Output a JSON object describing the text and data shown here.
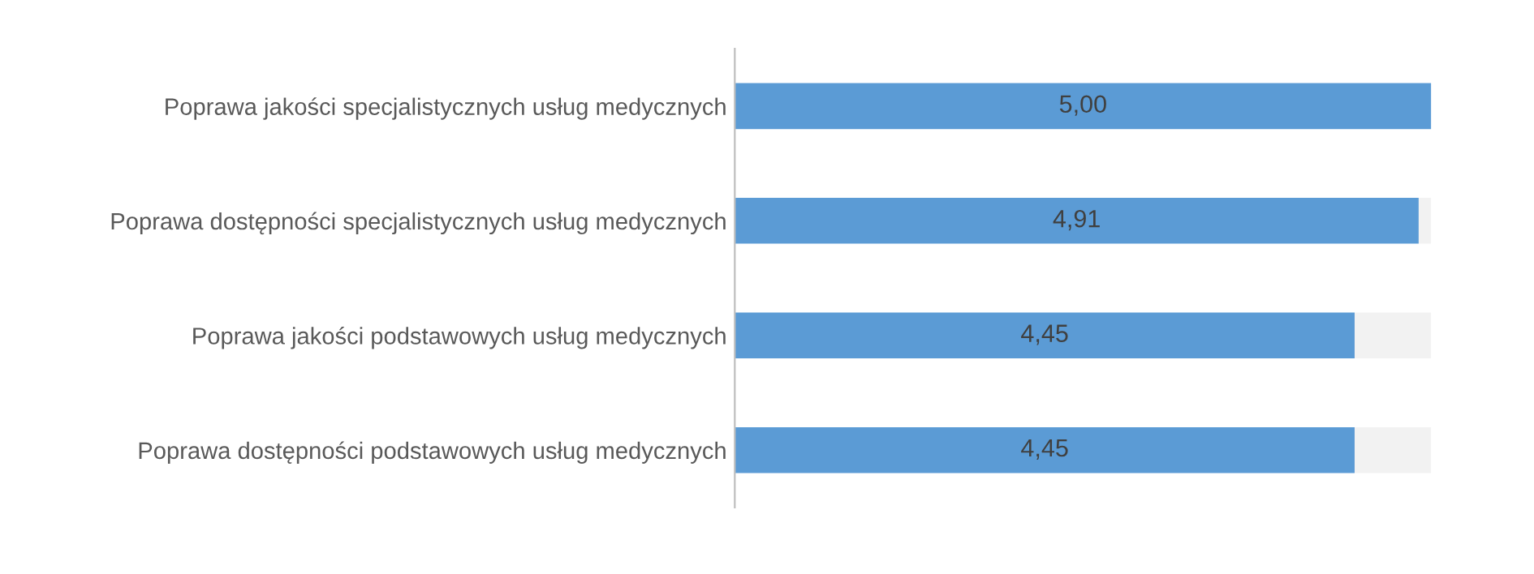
{
  "chart_data": {
    "type": "bar",
    "orientation": "horizontal",
    "stacked": true,
    "categories": [
      "Poprawa jakości specjalistycznych usług medycznych",
      "Poprawa dostępności specjalistycznych usług medycznych",
      "Poprawa jakości podstawowych usług medycznych",
      "Poprawa dostępności podstawowych usług medycznych"
    ],
    "series": [
      {
        "color": "#5b9bd5",
        "values": [
          5.0,
          4.91,
          4.45,
          4.45
        ],
        "value_labels": [
          "5,00",
          "4,91",
          "4,45",
          "4,45"
        ]
      },
      {
        "color": "#f2f2f2",
        "values": [
          0,
          0.09,
          0.55,
          0.55
        ]
      }
    ],
    "xlim": [
      0,
      5
    ],
    "tick_labels": "y",
    "grid": false,
    "legend": false
  }
}
